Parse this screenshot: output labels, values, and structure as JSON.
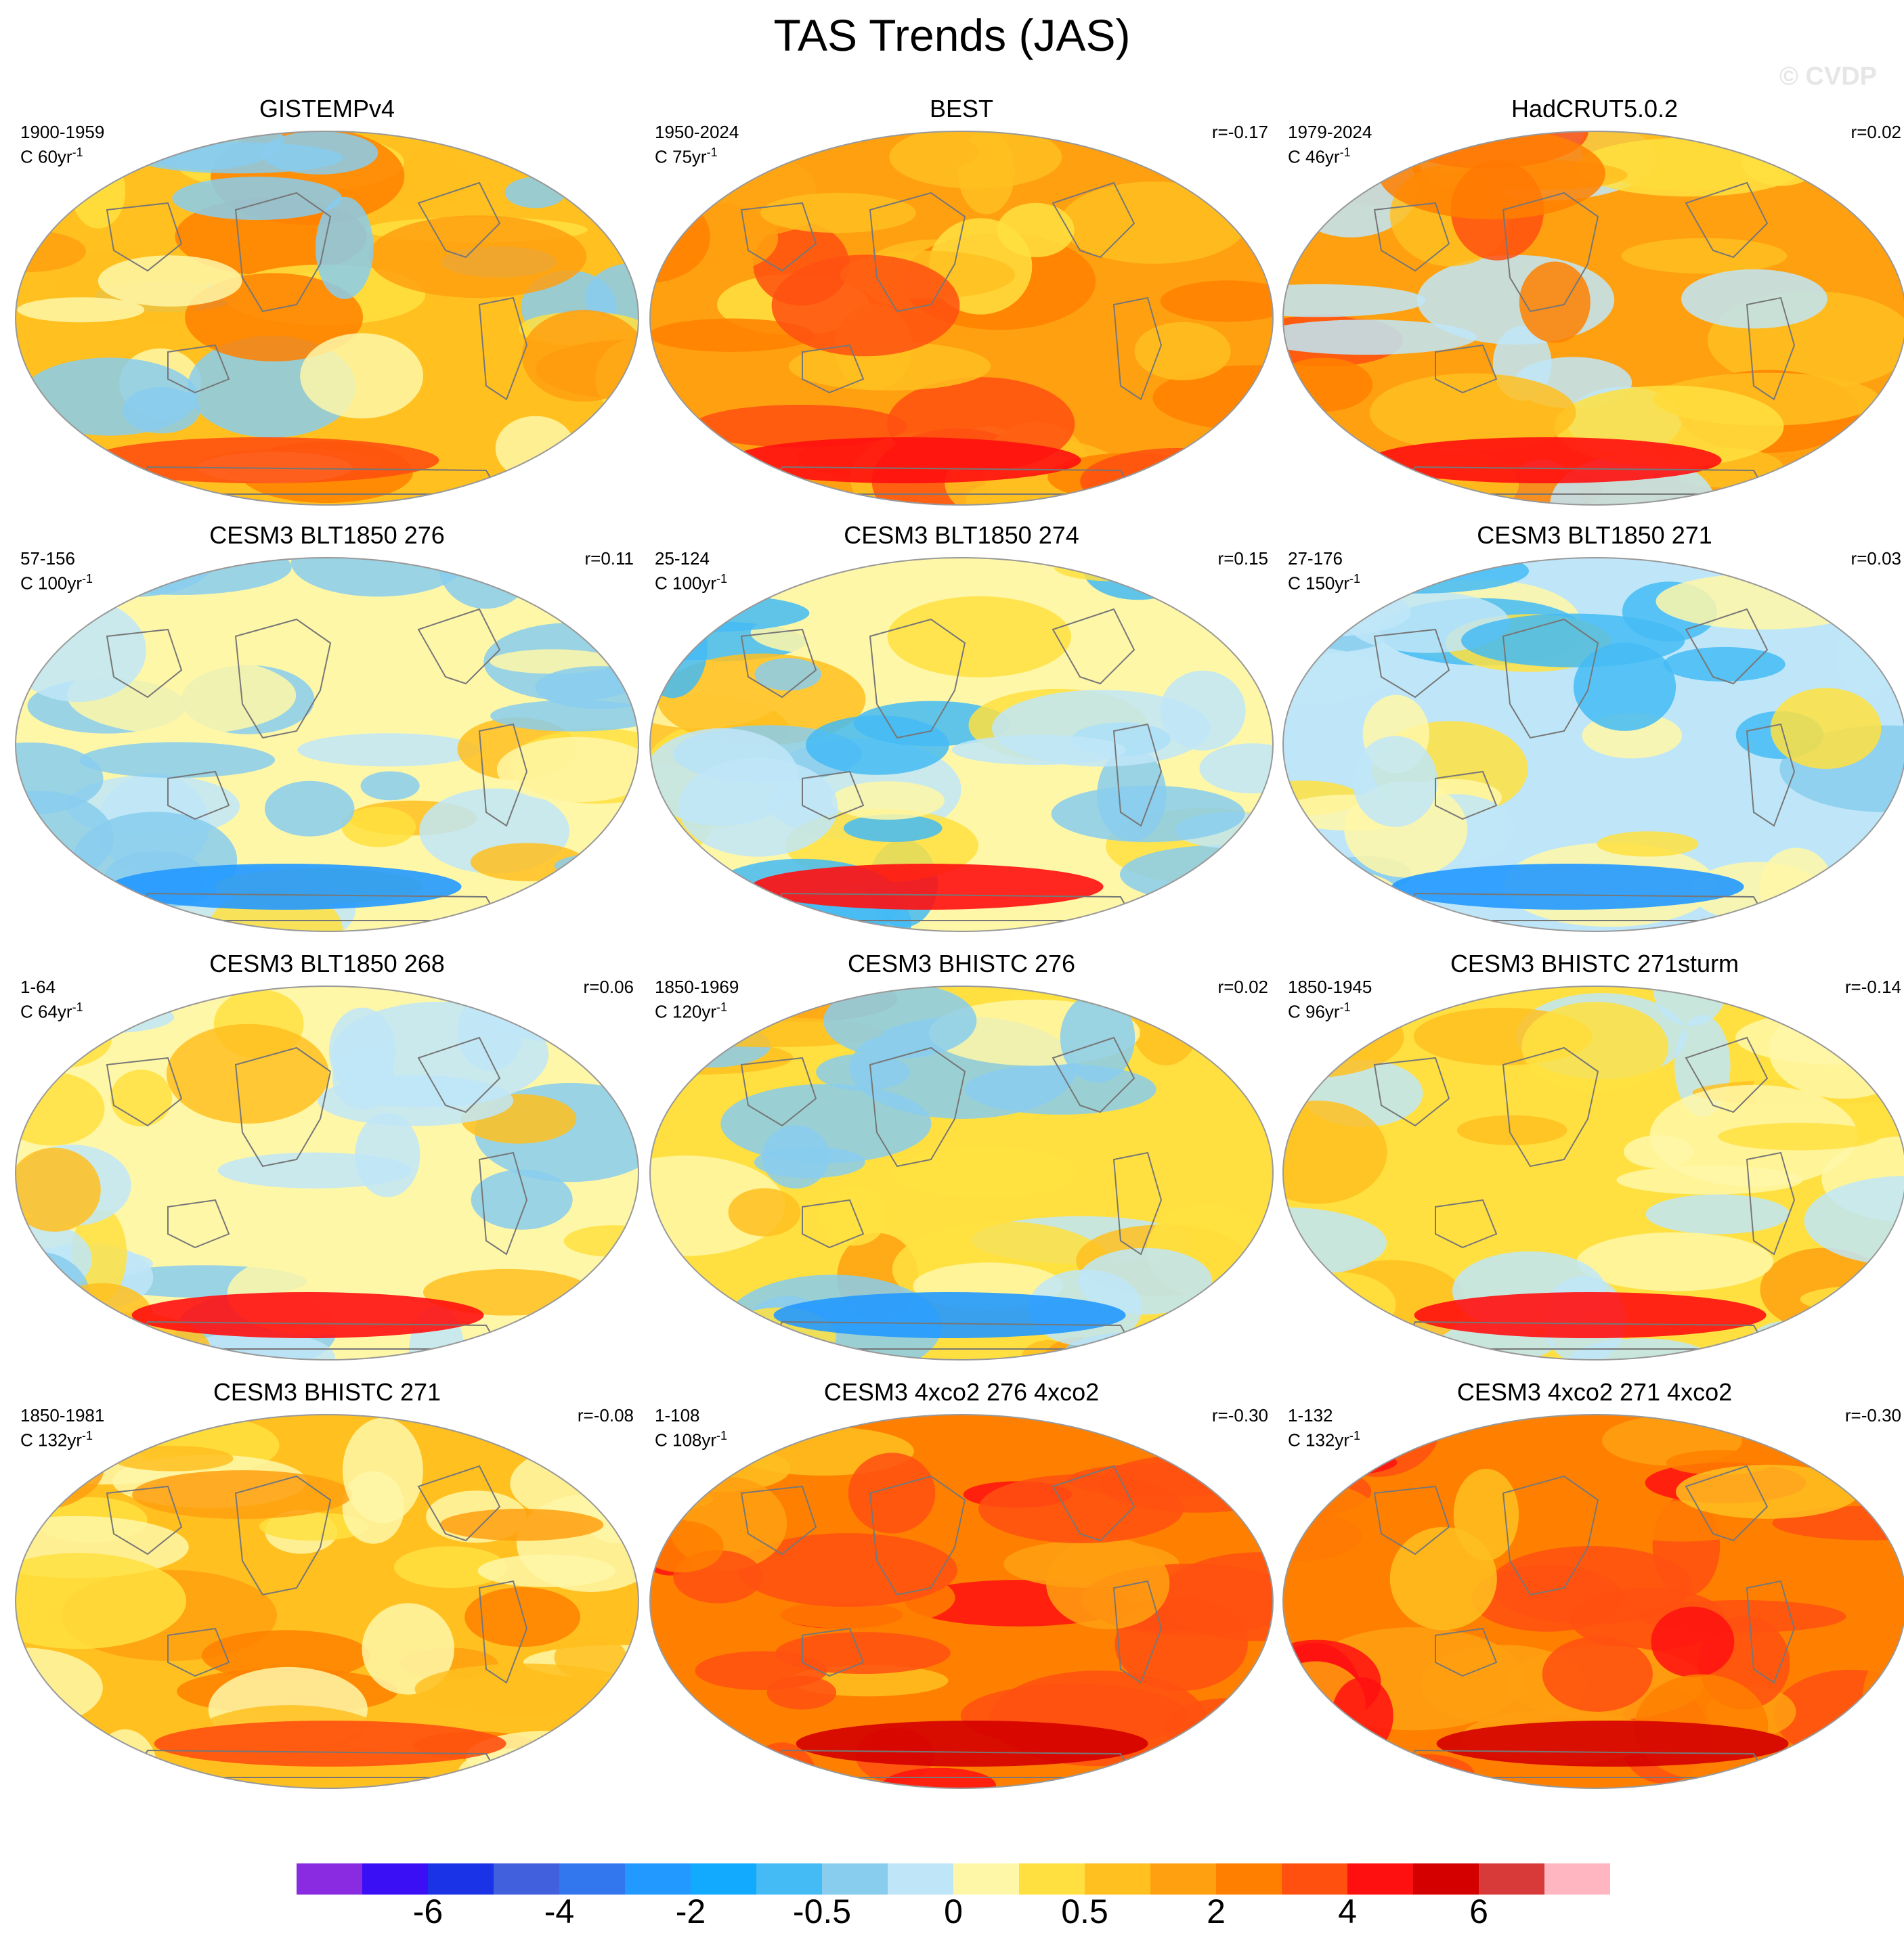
{
  "title": "TAS Trends (JAS)",
  "watermark": "© CVDP",
  "colors": {
    "scale": [
      "#8a2be2",
      "#3b0ff5",
      "#1a33e6",
      "#4060dd",
      "#3377ee",
      "#2299ff",
      "#11aaff",
      "#44bbf4",
      "#88ccee",
      "#bfe6f8",
      "#fff7a8",
      "#ffe040",
      "#ffc020",
      "#ffa010",
      "#ff8000",
      "#ff5010",
      "#ff1010",
      "#d40000",
      "#d83a3a",
      "#ffb6c1"
    ],
    "coast": "#777777"
  },
  "panels": [
    {
      "title": "GISTEMPv4",
      "period": "1900-1959",
      "length": "C 60yr",
      "exp": "-1",
      "corr": "",
      "dominant": 12,
      "accent": 8
    },
    {
      "title": "BEST",
      "period": "1950-2024",
      "length": "C 75yr",
      "exp": "-1",
      "corr": "r=-0.17",
      "dominant": 13,
      "accent": 12
    },
    {
      "title": "HadCRUT5.0.2",
      "period": "1979-2024",
      "length": "C 46yr",
      "exp": "-1",
      "corr": "r=0.02",
      "dominant": 13,
      "accent": 9
    },
    {
      "title": "CESM3 BLT1850 276",
      "period": "57-156",
      "length": "C 100yr",
      "exp": "-1",
      "corr": "r=0.11",
      "dominant": 10,
      "accent": 8
    },
    {
      "title": "CESM3 BLT1850 274",
      "period": "25-124",
      "length": "C 100yr",
      "exp": "-1",
      "corr": "r=0.15",
      "dominant": 10,
      "accent": 7
    },
    {
      "title": "CESM3 BLT1850 271",
      "period": "27-176",
      "length": "C 150yr",
      "exp": "-1",
      "corr": "r=0.03",
      "dominant": 9,
      "accent": 10
    },
    {
      "title": "CESM3 BLT1850 268",
      "period": "1-64",
      "length": "C 64yr",
      "exp": "-1",
      "corr": "r=0.06",
      "dominant": 10,
      "accent": 9
    },
    {
      "title": "CESM3 BHISTC 276",
      "period": "1850-1969",
      "length": "C 120yr",
      "exp": "-1",
      "corr": "r=0.02",
      "dominant": 11,
      "accent": 8
    },
    {
      "title": "CESM3 BHISTC 271sturm",
      "period": "1850-1945",
      "length": "C 96yr",
      "exp": "-1",
      "corr": "r=-0.14",
      "dominant": 11,
      "accent": 9
    },
    {
      "title": "CESM3 BHISTC 271",
      "period": "1850-1981",
      "length": "C 132yr",
      "exp": "-1",
      "corr": "r=-0.08",
      "dominant": 12,
      "accent": 10
    },
    {
      "title": "CESM3 4xco2 276 4xco2",
      "period": "1-108",
      "length": "C 108yr",
      "exp": "-1",
      "corr": "r=-0.30",
      "dominant": 14,
      "accent": 15
    },
    {
      "title": "CESM3 4xco2 271 4xco2",
      "period": "1-132",
      "length": "C 132yr",
      "exp": "-1",
      "corr": "r=-0.30",
      "dominant": 14,
      "accent": 15
    }
  ],
  "colorbar": {
    "labels": [
      "-6",
      "-4",
      "-2",
      "-0.5",
      "0",
      "0.5",
      "2",
      "4",
      "6"
    ],
    "label_boxes": [
      2,
      4,
      6,
      8,
      10,
      12,
      14,
      16,
      18
    ]
  }
}
